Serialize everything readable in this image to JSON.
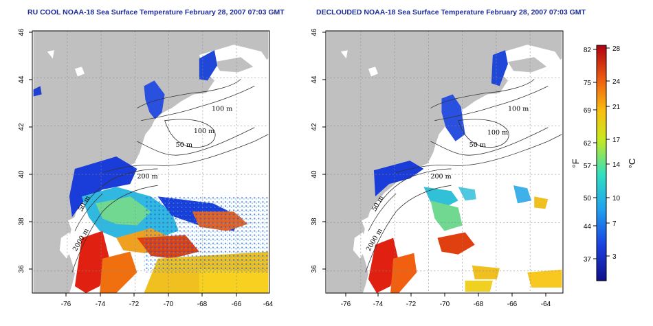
{
  "panels": [
    {
      "title": "RU COOL NOAA-18 Sea Surface Temperature February 28, 2007 07:03 GMT",
      "contour_labels": [
        "100 m",
        "100 m",
        "50 m",
        "200 m",
        "50 m",
        "2000 m"
      ]
    },
    {
      "title": "DECLOUDED NOAA-18 Sea Surface Temperature February 28, 2007 07:03 GMT",
      "contour_labels": [
        "100 m",
        "100 m",
        "50 m",
        "200 m",
        "50 m",
        "2000 m"
      ]
    }
  ],
  "axes": {
    "lon_ticks": [
      "-76",
      "-74",
      "-72",
      "-70",
      "-68",
      "-66",
      "-64"
    ],
    "lat_ticks": [
      "46",
      "44",
      "42",
      "40",
      "38",
      "36"
    ]
  },
  "colorbar": {
    "fahrenheit_label": "°F",
    "celsius_label": "°C",
    "fahrenheit_ticks": [
      "82",
      "75",
      "69",
      "62",
      "57",
      "50",
      "44",
      "37"
    ],
    "celsius_ticks": [
      "28",
      "24",
      "21",
      "17",
      "14",
      "10",
      "7",
      "3"
    ]
  },
  "colors": {
    "land": "#c0c0c0",
    "cloud": "#ffffff",
    "cold": "#1a3cd8",
    "warm": "#e02010"
  }
}
